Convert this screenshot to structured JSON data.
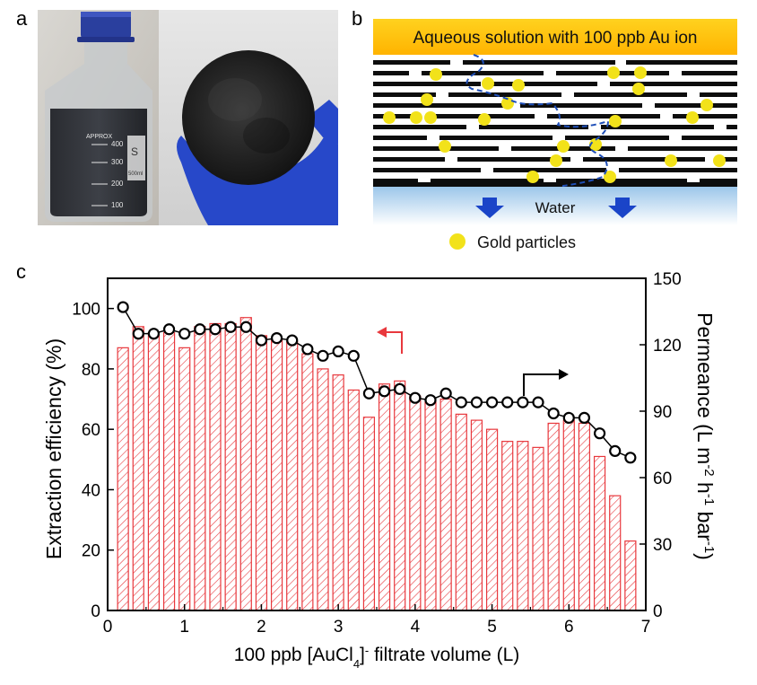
{
  "panels": {
    "a": "a",
    "b": "b",
    "c": "c"
  },
  "photo": {
    "bottle_brand": "APPROX",
    "bottle_marks": [
      "400",
      "300",
      "200",
      "100"
    ],
    "bottle_volume": "500ml",
    "bottle_logo": "S"
  },
  "schematic": {
    "top_label": "Aqueous solution with 100 ppb Au ion",
    "bottom_label": "Water",
    "legend_label": "Gold particles",
    "colors": {
      "top_band_start": "#ffd21f",
      "top_band_end": "#ffb300",
      "particle": "#f2e21a",
      "path": "#1f4fb8",
      "arrow": "#1a44c8",
      "water_start": "#9cc6ea",
      "water_end": "#ffffff"
    }
  },
  "chart_data": {
    "type": "bar+scatter",
    "x": [
      0.2,
      0.4,
      0.6,
      0.8,
      1.0,
      1.2,
      1.4,
      1.6,
      1.8,
      2.0,
      2.2,
      2.4,
      2.6,
      2.8,
      3.0,
      3.2,
      3.4,
      3.6,
      3.8,
      4.0,
      4.2,
      4.4,
      4.6,
      4.8,
      5.0,
      5.2,
      5.4,
      5.6,
      5.8,
      6.0,
      6.2,
      6.4,
      6.6,
      6.8
    ],
    "series": [
      {
        "name": "Extraction efficiency",
        "axis": "left",
        "kind": "bar",
        "color": "#e8383d",
        "values": [
          87,
          94,
          92,
          92,
          87,
          94,
          95,
          95,
          97,
          91,
          90,
          89,
          85,
          80,
          78,
          73,
          64,
          75,
          76,
          71,
          69,
          70,
          65,
          63,
          60,
          56,
          56,
          54,
          62,
          63,
          62,
          51,
          38,
          23
        ]
      },
      {
        "name": "Permeance",
        "axis": "right",
        "kind": "scatter-line",
        "color": "#000000",
        "values": [
          137,
          125,
          125,
          127,
          125,
          127,
          127,
          128,
          128,
          122,
          123,
          122,
          118,
          115,
          117,
          115,
          98,
          99,
          100,
          96,
          95,
          98,
          94,
          94,
          94,
          94,
          94,
          94,
          89,
          87,
          87,
          80,
          72,
          69
        ]
      }
    ],
    "xlabel_prefix": "100 ppb [AuCl",
    "xlabel_sub": "4",
    "xlabel_sup": "]",
    "xlabel_sup_sign": "-",
    "xlabel_suffix": " filtrate volume (L)",
    "ylabel_left": "Extraction efficiency (%)",
    "ylabel_right_main": "Permeance (L m",
    "ylabel_right_parts": [
      "-2",
      " h",
      "-1",
      " bar",
      "-1",
      ")"
    ],
    "xlim": [
      0,
      7
    ],
    "ylim_left": [
      0,
      110
    ],
    "ylim_right": [
      0,
      150
    ],
    "xticks": [
      "0",
      "1",
      "2",
      "3",
      "4",
      "5",
      "6",
      "7"
    ],
    "yticks_left": [
      "0",
      "20",
      "40",
      "60",
      "80",
      "100"
    ],
    "yticks_right": [
      "0",
      "30",
      "60",
      "90",
      "120",
      "150"
    ],
    "arrow_left_color": "#e8383d",
    "arrow_right_color": "#000000"
  }
}
